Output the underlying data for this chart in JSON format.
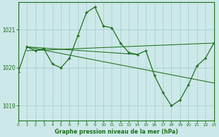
{
  "title": "Graphe pression niveau de la mer (hPa)",
  "bg_color": "#cce8e8",
  "line_color": "#1a6e1a",
  "grid_color": "#aacfcf",
  "xmin": 0,
  "xmax": 23,
  "ymin": 1018.62,
  "ymax": 1021.72,
  "yticks": [
    1019,
    1020,
    1021
  ],
  "xticks": [
    0,
    1,
    2,
    3,
    4,
    5,
    6,
    7,
    8,
    9,
    10,
    11,
    12,
    13,
    14,
    15,
    16,
    17,
    18,
    19,
    20,
    21,
    22,
    23
  ],
  "main_x": [
    0,
    1,
    2,
    3,
    4,
    5,
    6,
    7,
    8,
    9,
    10,
    11,
    12,
    13,
    14,
    15,
    16,
    17,
    18,
    19,
    20,
    21,
    22,
    23
  ],
  "main_y": [
    1019.9,
    1020.55,
    1020.45,
    1020.5,
    1020.1,
    1020.0,
    1020.25,
    1020.85,
    1021.45,
    1021.6,
    1021.1,
    1021.05,
    1020.65,
    1020.4,
    1020.35,
    1020.45,
    1019.8,
    1019.35,
    1019.0,
    1019.15,
    1019.55,
    1020.05,
    1020.25,
    1020.65
  ],
  "trend_lines": [
    {
      "x": [
        1,
        14
      ],
      "y": [
        1020.55,
        1020.35
      ]
    },
    {
      "x": [
        1,
        23
      ],
      "y": [
        1020.55,
        1019.6
      ]
    },
    {
      "x": [
        1,
        23
      ],
      "y": [
        1020.45,
        1020.65
      ]
    }
  ]
}
